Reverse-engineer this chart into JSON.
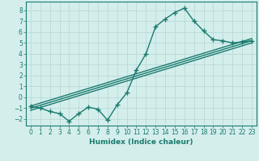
{
  "title": "",
  "xlabel": "Humidex (Indice chaleur)",
  "ylabel": "",
  "background_color": "#d4eeec",
  "grid_color": "#b8dada",
  "line_color": "#1a7a6e",
  "x_ticks": [
    0,
    1,
    2,
    3,
    4,
    5,
    6,
    7,
    8,
    9,
    10,
    11,
    12,
    13,
    14,
    15,
    16,
    17,
    18,
    19,
    20,
    21,
    22,
    23
  ],
  "y_ticks": [
    -2,
    -1,
    0,
    1,
    2,
    3,
    4,
    5,
    6,
    7,
    8
  ],
  "xlim": [
    -0.5,
    23.5
  ],
  "ylim": [
    -2.6,
    8.8
  ],
  "curve1_x": [
    0,
    1,
    2,
    3,
    4,
    5,
    6,
    7,
    8,
    9,
    10,
    11,
    12,
    13,
    14,
    15,
    16,
    17,
    18,
    19,
    20,
    21,
    22,
    23
  ],
  "curve1_y": [
    -0.8,
    -1.0,
    -1.3,
    -1.5,
    -2.2,
    -1.5,
    -0.9,
    -1.1,
    -2.1,
    -0.7,
    0.4,
    2.5,
    4.0,
    6.5,
    7.2,
    7.8,
    8.2,
    7.0,
    6.1,
    5.3,
    5.2,
    5.0,
    5.1,
    5.2
  ],
  "curve2_x": [
    0,
    23
  ],
  "curve2_y": [
    -1.0,
    5.2
  ],
  "curve3_x": [
    0,
    23
  ],
  "curve3_y": [
    -0.8,
    5.4
  ],
  "curve4_x": [
    0,
    23
  ],
  "curve4_y": [
    -1.2,
    5.0
  ],
  "marker": "+",
  "markersize": 4.0,
  "linewidth": 1.0,
  "tick_labelsize": 5.5,
  "xlabel_fontsize": 6.5
}
